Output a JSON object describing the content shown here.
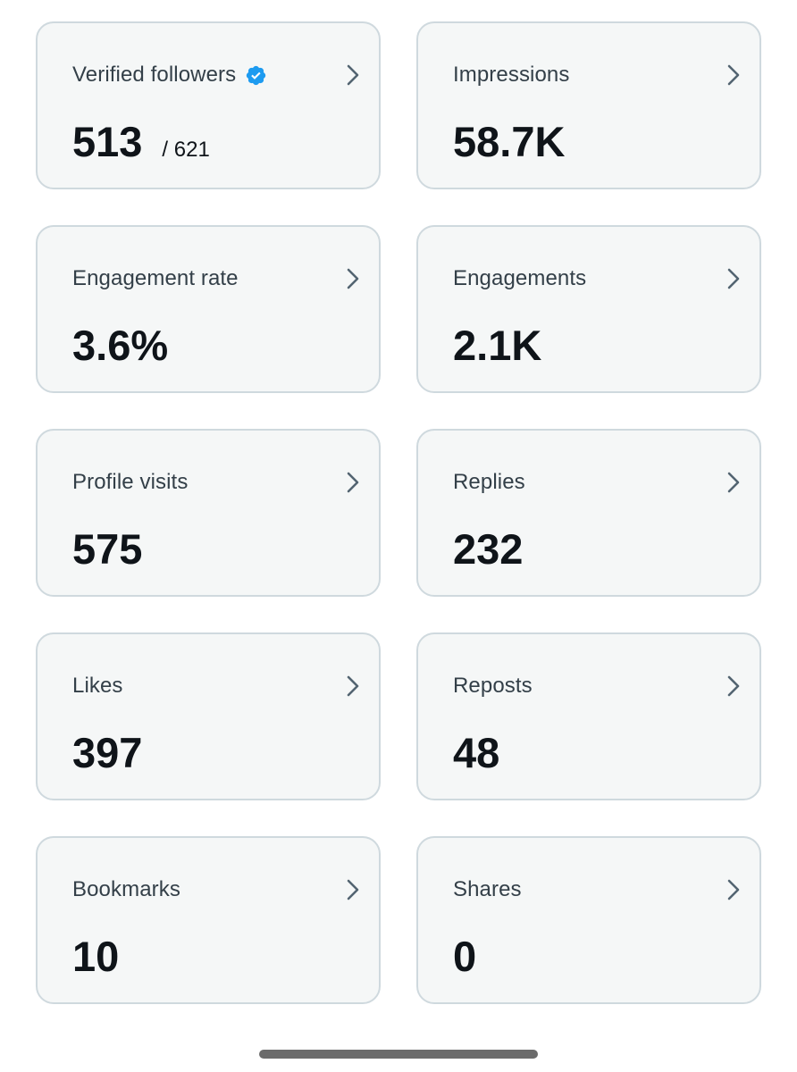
{
  "cards": [
    {
      "id": "verified-followers",
      "title": "Verified followers",
      "value": "513",
      "sub": "/ 621",
      "verified": true
    },
    {
      "id": "impressions",
      "title": "Impressions",
      "value": "58.7K"
    },
    {
      "id": "engagement-rate",
      "title": "Engagement rate",
      "value": "3.6%"
    },
    {
      "id": "engagements",
      "title": "Engagements",
      "value": "2.1K"
    },
    {
      "id": "profile-visits",
      "title": "Profile visits",
      "value": "575"
    },
    {
      "id": "replies",
      "title": "Replies",
      "value": "232"
    },
    {
      "id": "likes",
      "title": "Likes",
      "value": "397"
    },
    {
      "id": "reposts",
      "title": "Reposts",
      "value": "48"
    },
    {
      "id": "bookmarks",
      "title": "Bookmarks",
      "value": "10"
    },
    {
      "id": "shares",
      "title": "Shares",
      "value": "0"
    }
  ],
  "icons": {
    "chevron": "chevron-right-icon",
    "verified": "verified-badge-icon"
  },
  "colors": {
    "card_bg": "#f5f7f7",
    "card_border": "#cfd9de",
    "title_text": "#333f48",
    "value_text": "#0f1419",
    "verified_blue": "#1d9bf0",
    "chevron": "#536471"
  }
}
